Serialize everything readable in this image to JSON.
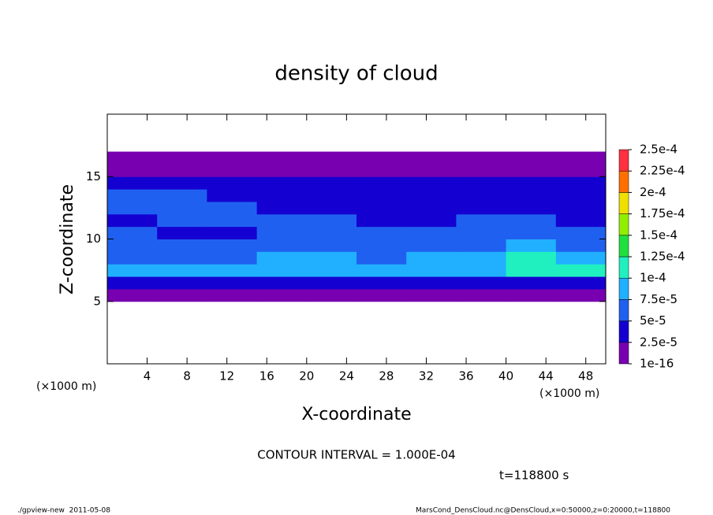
{
  "chart_data": {
    "type": "heatmap",
    "title": "density of cloud",
    "xlabel": "X-coordinate",
    "ylabel": "Z-coordinate",
    "x_unit_left": "(×1000 m)",
    "x_unit_right": "(×1000 m)",
    "xlim": [
      0,
      50
    ],
    "ylim": [
      0,
      20
    ],
    "xticks": [
      4,
      8,
      12,
      16,
      20,
      24,
      28,
      32,
      36,
      40,
      44,
      48
    ],
    "yticks": [
      5,
      10,
      15
    ],
    "x_edges": [
      0,
      5,
      10,
      15,
      20,
      25,
      30,
      35,
      40,
      45,
      50
    ],
    "z_edges": [
      5,
      6,
      7,
      8,
      9,
      10,
      11,
      12,
      13,
      14,
      15,
      16,
      17
    ],
    "values": [
      [
        1e-05,
        1e-05,
        1e-05,
        1e-05,
        1e-05,
        1e-05,
        1e-05,
        1e-05,
        1e-05,
        1e-05
      ],
      [
        3e-05,
        3.5e-05,
        3.5e-05,
        3e-05,
        3e-05,
        3e-05,
        3e-05,
        3.5e-05,
        3e-05,
        3e-05
      ],
      [
        9e-05,
        8e-05,
        8e-05,
        9e-05,
        9e-05,
        8e-05,
        8e-05,
        9e-05,
        0.000105,
        0.000105
      ],
      [
        7e-05,
        7e-05,
        6.5e-05,
        8e-05,
        8e-05,
        7e-05,
        7.5e-05,
        9e-05,
        0.000105,
        9e-05
      ],
      [
        6e-05,
        6e-05,
        6e-05,
        6e-05,
        6e-05,
        6.5e-05,
        6e-05,
        7e-05,
        7.5e-05,
        7e-05
      ],
      [
        5.5e-05,
        3e-05,
        2.8e-05,
        5.5e-05,
        6e-05,
        6e-05,
        5.5e-05,
        5e-05,
        5e-05,
        5e-05
      ],
      [
        4e-05,
        5e-05,
        5.5e-05,
        5.5e-05,
        5.5e-05,
        4.5e-05,
        4e-05,
        5e-05,
        5e-05,
        4.5e-05
      ],
      [
        5e-05,
        5e-05,
        5e-05,
        4.5e-05,
        4e-05,
        3e-05,
        2.8e-05,
        3e-05,
        4e-05,
        3.5e-05
      ],
      [
        5e-05,
        5e-05,
        4.5e-05,
        4e-05,
        2.5e-05,
        2.6e-05,
        2.6e-05,
        2.6e-05,
        2.7e-05,
        3e-05
      ],
      [
        4.5e-05,
        4e-05,
        4e-05,
        4e-05,
        3.5e-05,
        3e-05,
        3.5e-05,
        3e-05,
        3e-05,
        3e-05
      ],
      [
        1e-05,
        1e-05,
        1e-05,
        1e-05,
        1e-05,
        1e-05,
        1e-05,
        1e-05,
        1e-05,
        1e-05
      ],
      [
        1e-05,
        1e-05,
        1e-05,
        1e-05,
        1e-05,
        1e-05,
        1e-05,
        1e-05,
        1e-05,
        1e-05
      ]
    ],
    "levels": [
      {
        "value": 1e-16,
        "label": "1e-16"
      },
      {
        "value": 2.5e-05,
        "label": "2.5e-5"
      },
      {
        "value": 5e-05,
        "label": "5e-5"
      },
      {
        "value": 7.5e-05,
        "label": "7.5e-5"
      },
      {
        "value": 0.0001,
        "label": "1e-4"
      },
      {
        "value": 0.000125,
        "label": "1.25e-4"
      },
      {
        "value": 0.00015,
        "label": "1.5e-4"
      },
      {
        "value": 0.000175,
        "label": "1.75e-4"
      },
      {
        "value": 0.0002,
        "label": "2e-4"
      },
      {
        "value": 0.000225,
        "label": "2.25e-4"
      },
      {
        "value": 0.00025,
        "label": "2.5e-4"
      }
    ],
    "colors": [
      "#7800b0",
      "#1400d0",
      "#2060f0",
      "#20b0ff",
      "#20f0c0",
      "#20e040",
      "#90f000",
      "#f0e000",
      "#ff7000",
      "#ff3040"
    ],
    "contour_note": "CONTOUR INTERVAL = 1.000E-04",
    "time_note": "t=118800 s",
    "footer_left": "./gpview-new  2011-05-08",
    "footer_right": "MarsCond_DensCloud.nc@DensCloud,x=0:50000,z=0:20000,t=118800"
  }
}
